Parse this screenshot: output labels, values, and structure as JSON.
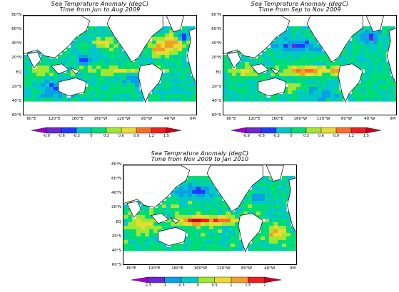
{
  "colors": {
    "scale": [
      "#a000c8",
      "#6e28d2",
      "#1e3cff",
      "#0aa0e6",
      "#00c8c8",
      "#00dc78",
      "#a0e632",
      "#e6dc32",
      "#f0a028",
      "#fa6e28",
      "#f01e1e",
      "#c8001e"
    ],
    "land": "#ffffff",
    "coast": "#000000"
  },
  "chart_data": [
    {
      "type": "heatmap",
      "title": "Sea Temprature Anomaly (degC)",
      "subtitle": "Time from Jun to Aug 2009",
      "x_ticks": [
        "80°E",
        "120°E",
        "160°E",
        "160°W",
        "120°W",
        "80°W",
        "40°W",
        "0M"
      ],
      "y_ticks": [
        "80°N",
        "60°N",
        "40°N",
        "20°N",
        "EQ",
        "20°S",
        "40°S",
        "60°S"
      ],
      "colorbar_labels": [
        "-0.9",
        "-0.6",
        "-0.3",
        "0",
        "0.3",
        "0.6",
        "0.9",
        "1.2",
        "1.5"
      ],
      "colorbar_levels": [
        -0.9,
        -0.6,
        -0.3,
        0,
        0.3,
        0.6,
        0.9,
        1.2,
        1.5
      ],
      "features": {
        "equatorial_pacific": "warm (0.6 to 1.2)",
        "north_atlantic": "strong warm (>1.5) with cold core off Greenland",
        "east_pacific_coast": "warm (0.9 to 1.5)",
        "southern_indian_ocean": "cool (-0.3 to -0.6)"
      }
    },
    {
      "type": "heatmap",
      "title": "Sea Temprature Anomaly (degC)",
      "subtitle": "Time from Sep to Nov 2009",
      "x_ticks": [
        "80°E",
        "120°E",
        "160°E",
        "160°W",
        "120°W",
        "80°W",
        "40°W",
        "0M"
      ],
      "y_ticks": [
        "80°N",
        "60°N",
        "40°N",
        "20°N",
        "EQ",
        "20°S",
        "40°S",
        "60°S"
      ],
      "colorbar_labels": [
        "-0.9",
        "-0.6",
        "-0.3",
        "0",
        "0.3",
        "0.6",
        "0.9",
        "1.2",
        "1.5"
      ],
      "colorbar_levels": [
        -0.9,
        -0.6,
        -0.3,
        0,
        0.3,
        0.6,
        0.9,
        1.2,
        1.5
      ],
      "features": {
        "equatorial_pacific": "warm (0.9 to 1.5), El Nino developing",
        "north_pacific": "cool (-0.3 to -0.6)",
        "north_atlantic": "cool patch near 40°W",
        "indian_ocean": "warm (0.6 to 0.9)"
      }
    },
    {
      "type": "heatmap",
      "title": "Sea Temprature Anomaly (degC)",
      "subtitle": "Time from Nov 2009 to Jan 2010",
      "x_ticks": [
        "80°E",
        "120°E",
        "160°E",
        "160°W",
        "120°W",
        "80°W",
        "40°W",
        "0M"
      ],
      "y_ticks": [
        "80°N",
        "60°N",
        "40°N",
        "20°N",
        "EQ",
        "20°S",
        "40°S",
        "60°S"
      ],
      "colorbar_labels": [
        "-1.5",
        "-1",
        "-0.5",
        "0",
        "0.5",
        "1",
        "1.5",
        "2"
      ],
      "colorbar_levels": [
        -1.5,
        -1,
        -0.5,
        0,
        0.5,
        1,
        1.5,
        2
      ],
      "features": {
        "equatorial_pacific": "strong warm (1.5 to 2.0), mature El Nino",
        "north_pacific": "cool (-0.5 to -1)",
        "south_atlantic": "warm (1 to 1.5)",
        "indian_ocean": "warm (0.5 to 1)"
      }
    }
  ]
}
